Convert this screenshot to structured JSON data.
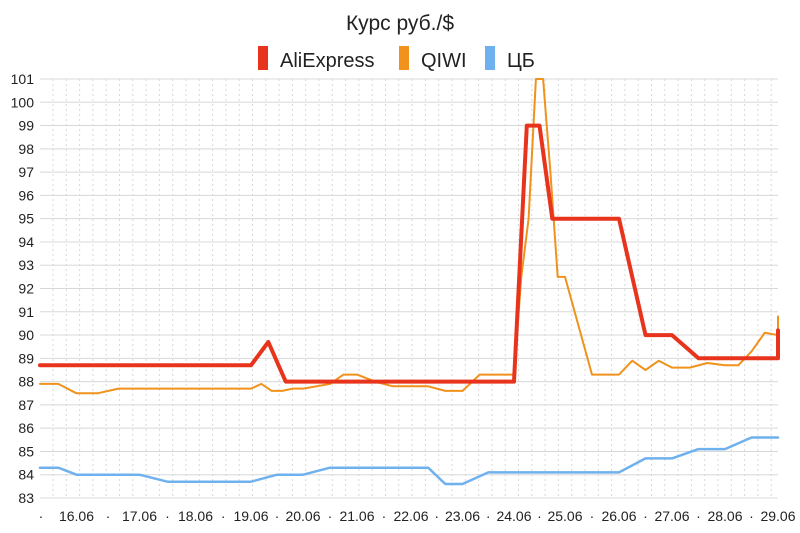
{
  "chart_data": {
    "type": "line",
    "title": "Курс руб./$",
    "xlabel": "",
    "ylabel": "",
    "ylim": [
      83,
      101
    ],
    "y_ticks": [
      83,
      84,
      85,
      86,
      87,
      88,
      89,
      90,
      91,
      92,
      93,
      94,
      95,
      96,
      97,
      98,
      99,
      100,
      101
    ],
    "x_tick_labels": [
      "16.06",
      "17.06",
      "18.06",
      "19.06",
      "20.06",
      "21.06",
      "22.06",
      "23.06",
      "24.06",
      "25.06",
      "26.06",
      "27.06",
      "28.06",
      "29.06"
    ],
    "grid": true,
    "legend_position": "top-center",
    "series": [
      {
        "name": "AliExpress",
        "color": "#e8341c",
        "width": "thick",
        "points": [
          [
            "15.06",
            88.7
          ],
          [
            "19.06",
            88.7
          ],
          [
            "19.06",
            89.7
          ],
          [
            "19.06",
            88.0
          ],
          [
            "24.06",
            88.0
          ],
          [
            "24.06",
            99.0
          ],
          [
            "24.06",
            99.0
          ],
          [
            "24.06",
            95.0
          ],
          [
            "25.06",
            95.0
          ],
          [
            "26.06",
            95.0
          ],
          [
            "26.06",
            90.0
          ],
          [
            "27.06",
            90.0
          ],
          [
            "27.06",
            89.0
          ],
          [
            "29.06",
            89.0
          ],
          [
            "29.06",
            90.2
          ]
        ]
      },
      {
        "name": "QIWI",
        "color": "#f0921c",
        "width": "thin",
        "points": [
          [
            "15.06",
            87.9
          ],
          [
            "15.06",
            87.9
          ],
          [
            "16.06",
            87.5
          ],
          [
            "16.06",
            87.5
          ],
          [
            "16.06",
            87.7
          ],
          [
            "18.06",
            87.7
          ],
          [
            "19.06",
            87.7
          ],
          [
            "19.06",
            87.9
          ],
          [
            "19.06",
            87.6
          ],
          [
            "19.06",
            87.6
          ],
          [
            "19.06",
            87.7
          ],
          [
            "20.06",
            87.7
          ],
          [
            "20.06",
            87.8
          ],
          [
            "20.06",
            87.9
          ],
          [
            "20.06",
            88.3
          ],
          [
            "21.06",
            88.3
          ],
          [
            "21.06",
            88.0
          ],
          [
            "21.06",
            87.8
          ],
          [
            "22.06",
            87.8
          ],
          [
            "22.06",
            87.8
          ],
          [
            "22.06",
            87.6
          ],
          [
            "23.06",
            87.6
          ],
          [
            "23.06",
            88.3
          ],
          [
            "23.06",
            88.3
          ],
          [
            "24.06",
            88.3
          ],
          [
            "24.06",
            92.5
          ],
          [
            "24.06",
            95.0
          ],
          [
            "24.06",
            101.0
          ],
          [
            "24.06",
            101.0
          ],
          [
            "24.06",
            97.0
          ],
          [
            "24.06",
            92.5
          ],
          [
            "25.06",
            92.5
          ],
          [
            "25.06",
            88.3
          ],
          [
            "26.06",
            88.3
          ],
          [
            "26.06",
            88.9
          ],
          [
            "26.06",
            88.5
          ],
          [
            "26.06",
            88.9
          ],
          [
            "27.06",
            88.6
          ],
          [
            "27.06",
            88.6
          ],
          [
            "27.06",
            88.8
          ],
          [
            "28.06",
            88.7
          ],
          [
            "28.06",
            88.7
          ],
          [
            "28.06",
            89.3
          ],
          [
            "28.06",
            90.1
          ],
          [
            "29.06",
            90.0
          ],
          [
            "29.06",
            90.0
          ],
          [
            "29.06",
            90.8
          ]
        ]
      },
      {
        "name": "ЦБ",
        "color": "#6fb1ef",
        "width": "medium",
        "points": [
          [
            "15.06",
            84.3
          ],
          [
            "15.06",
            84.3
          ],
          [
            "16.06",
            84.0
          ],
          [
            "17.06",
            84.0
          ],
          [
            "17.06",
            83.7
          ],
          [
            "18.06",
            83.7
          ],
          [
            "19.06",
            83.7
          ],
          [
            "19.06",
            84.0
          ],
          [
            "20.06",
            84.0
          ],
          [
            "20.06",
            84.3
          ],
          [
            "21.06",
            84.3
          ],
          [
            "22.06",
            84.3
          ],
          [
            "22.06",
            84.3
          ],
          [
            "22.06",
            83.6
          ],
          [
            "23.06",
            83.6
          ],
          [
            "23.06",
            84.1
          ],
          [
            "26.06",
            84.1
          ],
          [
            "26.06",
            84.7
          ],
          [
            "27.06",
            84.7
          ],
          [
            "27.06",
            85.1
          ],
          [
            "28.06",
            85.1
          ],
          [
            "28.06",
            85.6
          ],
          [
            "29.06",
            85.6
          ]
        ]
      }
    ]
  }
}
